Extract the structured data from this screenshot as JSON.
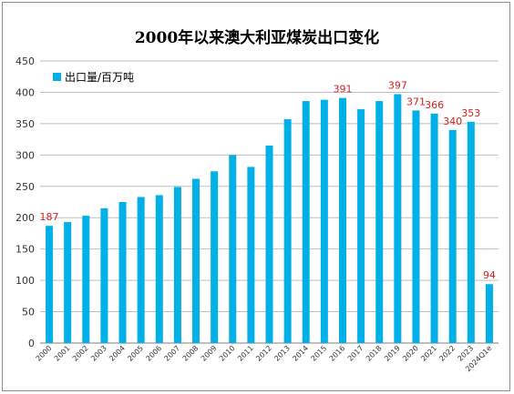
{
  "chart_data": {
    "type": "bar",
    "title": "2000年以来澳大利亚煤炭出口变化",
    "xlabel": "",
    "ylabel": "",
    "ylim": [
      0,
      450
    ],
    "yticks": [
      0,
      50,
      100,
      150,
      200,
      250,
      300,
      350,
      400,
      450
    ],
    "grid": "horizontal",
    "legend_position": "top-left",
    "series": [
      {
        "name": "出口量/百万吨",
        "color": "#00b0e6",
        "values": [
          187,
          193,
          203,
          215,
          225,
          233,
          236,
          249,
          262,
          274,
          300,
          281,
          315,
          357,
          386,
          388,
          391,
          373,
          386,
          397,
          371,
          366,
          340,
          353,
          94
        ]
      }
    ],
    "categories": [
      "2000",
      "2001",
      "2002",
      "2003",
      "2004",
      "2005",
      "2006",
      "2007",
      "2008",
      "2009",
      "2010",
      "2011",
      "2012",
      "2013",
      "2014",
      "2015",
      "2016",
      "2017",
      "2018",
      "2019",
      "2020",
      "2021",
      "2022",
      "2023",
      "2024Q1e"
    ],
    "data_labels": [
      {
        "index": 0,
        "text": "187"
      },
      {
        "index": 16,
        "text": "391"
      },
      {
        "index": 19,
        "text": "397"
      },
      {
        "index": 20,
        "text": "371"
      },
      {
        "index": 21,
        "text": "366"
      },
      {
        "index": 22,
        "text": "340"
      },
      {
        "index": 23,
        "text": "353"
      },
      {
        "index": 24,
        "text": "94"
      }
    ],
    "label_color": "#d42020"
  }
}
